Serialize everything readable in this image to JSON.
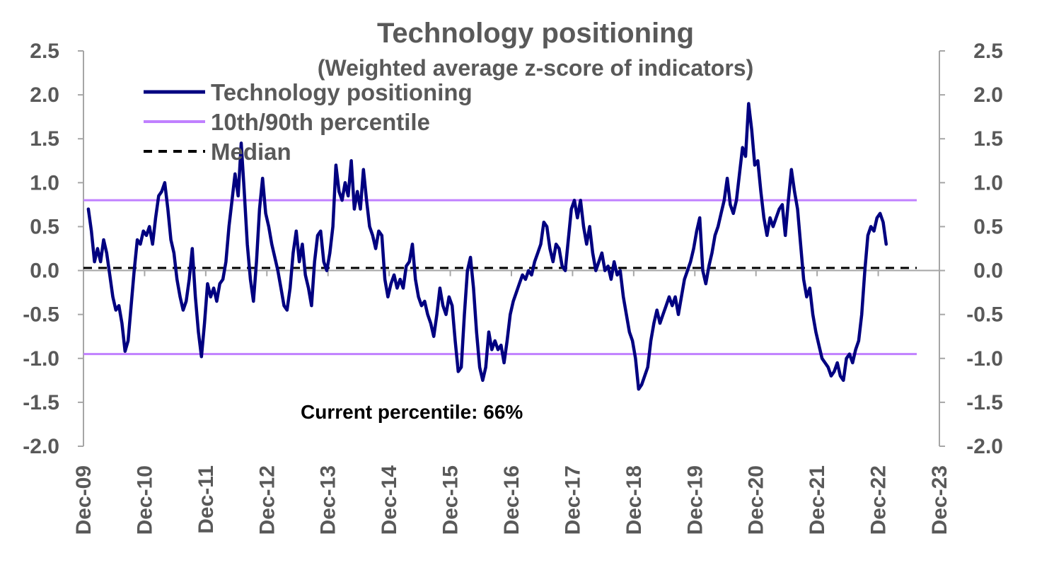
{
  "chart_data": {
    "type": "line",
    "title": "Technology positioning",
    "subtitle": "(Weighted average z-score of indicators)",
    "annotation": "Current percentile: 66%",
    "ylim": [
      -2.0,
      2.5
    ],
    "y_ticks": [
      "2.5",
      "2.0",
      "1.5",
      "1.0",
      "0.5",
      "0.0",
      "-0.5",
      "-1.0",
      "-1.5",
      "-2.0"
    ],
    "x_ticks": [
      "Dec-09",
      "Dec-10",
      "Dec-11",
      "Dec-12",
      "Dec-13",
      "Dec-14",
      "Dec-15",
      "Dec-16",
      "Dec-17",
      "Dec-18",
      "Dec-19",
      "Dec-20",
      "Dec-21",
      "Dec-22",
      "Dec-23"
    ],
    "x_range": [
      2009.92,
      2023.92
    ],
    "reference_lines": {
      "p90": 0.8,
      "p10": -0.95,
      "median": 0.03
    },
    "colors": {
      "series": "#000080",
      "percentile": "#c080ff",
      "median": "#000000",
      "axis": "#a6a6a6"
    },
    "legend": [
      {
        "label": "Technology positioning",
        "style": "solid-navy"
      },
      {
        "label": "10th/90th percentile",
        "style": "solid-lilac"
      },
      {
        "label": "Median",
        "style": "dashed-black"
      }
    ],
    "series": [
      {
        "name": "Technology positioning",
        "points": [
          [
            2010.0,
            0.7
          ],
          [
            2010.05,
            0.45
          ],
          [
            2010.1,
            0.1
          ],
          [
            2010.15,
            0.25
          ],
          [
            2010.2,
            0.1
          ],
          [
            2010.25,
            0.35
          ],
          [
            2010.3,
            0.2
          ],
          [
            2010.35,
            -0.05
          ],
          [
            2010.4,
            -0.3
          ],
          [
            2010.45,
            -0.45
          ],
          [
            2010.5,
            -0.4
          ],
          [
            2010.55,
            -0.6
          ],
          [
            2010.6,
            -0.92
          ],
          [
            2010.65,
            -0.8
          ],
          [
            2010.7,
            -0.4
          ],
          [
            2010.75,
            0.0
          ],
          [
            2010.8,
            0.35
          ],
          [
            2010.85,
            0.3
          ],
          [
            2010.9,
            0.45
          ],
          [
            2010.95,
            0.4
          ],
          [
            2011.0,
            0.5
          ],
          [
            2011.05,
            0.3
          ],
          [
            2011.1,
            0.6
          ],
          [
            2011.15,
            0.85
          ],
          [
            2011.2,
            0.9
          ],
          [
            2011.25,
            1.0
          ],
          [
            2011.3,
            0.7
          ],
          [
            2011.35,
            0.35
          ],
          [
            2011.4,
            0.2
          ],
          [
            2011.45,
            -0.1
          ],
          [
            2011.5,
            -0.3
          ],
          [
            2011.55,
            -0.45
          ],
          [
            2011.6,
            -0.35
          ],
          [
            2011.65,
            -0.1
          ],
          [
            2011.7,
            0.25
          ],
          [
            2011.75,
            -0.3
          ],
          [
            2011.8,
            -0.7
          ],
          [
            2011.85,
            -0.98
          ],
          [
            2011.9,
            -0.6
          ],
          [
            2011.95,
            -0.15
          ],
          [
            2012.0,
            -0.3
          ],
          [
            2012.05,
            -0.2
          ],
          [
            2012.1,
            -0.35
          ],
          [
            2012.15,
            -0.15
          ],
          [
            2012.2,
            -0.1
          ],
          [
            2012.25,
            0.1
          ],
          [
            2012.3,
            0.5
          ],
          [
            2012.35,
            0.8
          ],
          [
            2012.4,
            1.1
          ],
          [
            2012.45,
            0.85
          ],
          [
            2012.5,
            1.45
          ],
          [
            2012.55,
            0.9
          ],
          [
            2012.6,
            0.3
          ],
          [
            2012.65,
            -0.1
          ],
          [
            2012.7,
            -0.35
          ],
          [
            2012.75,
            0.1
          ],
          [
            2012.8,
            0.7
          ],
          [
            2012.85,
            1.05
          ],
          [
            2012.9,
            0.65
          ],
          [
            2012.95,
            0.5
          ],
          [
            2013.0,
            0.3
          ],
          [
            2013.05,
            0.15
          ],
          [
            2013.1,
            0.0
          ],
          [
            2013.15,
            -0.2
          ],
          [
            2013.2,
            -0.4
          ],
          [
            2013.25,
            -0.45
          ],
          [
            2013.3,
            -0.2
          ],
          [
            2013.35,
            0.2
          ],
          [
            2013.4,
            0.45
          ],
          [
            2013.45,
            0.1
          ],
          [
            2013.5,
            0.3
          ],
          [
            2013.55,
            -0.05
          ],
          [
            2013.6,
            -0.2
          ],
          [
            2013.65,
            -0.4
          ],
          [
            2013.7,
            0.1
          ],
          [
            2013.75,
            0.4
          ],
          [
            2013.8,
            0.45
          ],
          [
            2013.85,
            0.1
          ],
          [
            2013.9,
            0.0
          ],
          [
            2013.95,
            0.2
          ],
          [
            2014.0,
            0.5
          ],
          [
            2014.05,
            1.2
          ],
          [
            2014.1,
            0.9
          ],
          [
            2014.15,
            0.8
          ],
          [
            2014.2,
            1.0
          ],
          [
            2014.25,
            0.85
          ],
          [
            2014.3,
            1.25
          ],
          [
            2014.35,
            0.7
          ],
          [
            2014.4,
            0.9
          ],
          [
            2014.45,
            0.7
          ],
          [
            2014.5,
            1.15
          ],
          [
            2014.55,
            0.8
          ],
          [
            2014.6,
            0.5
          ],
          [
            2014.65,
            0.4
          ],
          [
            2014.7,
            0.25
          ],
          [
            2014.75,
            0.45
          ],
          [
            2014.8,
            0.4
          ],
          [
            2014.85,
            -0.1
          ],
          [
            2014.9,
            -0.3
          ],
          [
            2014.95,
            -0.15
          ],
          [
            2015.0,
            -0.05
          ],
          [
            2015.05,
            -0.2
          ],
          [
            2015.1,
            -0.1
          ],
          [
            2015.15,
            -0.2
          ],
          [
            2015.2,
            0.05
          ],
          [
            2015.25,
            0.1
          ],
          [
            2015.3,
            0.3
          ],
          [
            2015.35,
            -0.1
          ],
          [
            2015.4,
            -0.3
          ],
          [
            2015.45,
            -0.4
          ],
          [
            2015.5,
            -0.35
          ],
          [
            2015.55,
            -0.5
          ],
          [
            2015.6,
            -0.6
          ],
          [
            2015.65,
            -0.75
          ],
          [
            2015.7,
            -0.5
          ],
          [
            2015.75,
            -0.2
          ],
          [
            2015.8,
            -0.4
          ],
          [
            2015.85,
            -0.5
          ],
          [
            2015.9,
            -0.3
          ],
          [
            2015.95,
            -0.4
          ],
          [
            2016.0,
            -0.8
          ],
          [
            2016.05,
            -1.15
          ],
          [
            2016.1,
            -1.1
          ],
          [
            2016.15,
            -0.5
          ],
          [
            2016.2,
            0.0
          ],
          [
            2016.25,
            0.15
          ],
          [
            2016.3,
            -0.2
          ],
          [
            2016.35,
            -0.7
          ],
          [
            2016.4,
            -1.1
          ],
          [
            2016.45,
            -1.25
          ],
          [
            2016.5,
            -1.1
          ],
          [
            2016.55,
            -0.7
          ],
          [
            2016.6,
            -0.9
          ],
          [
            2016.65,
            -0.8
          ],
          [
            2016.7,
            -0.9
          ],
          [
            2016.75,
            -0.85
          ],
          [
            2016.8,
            -1.05
          ],
          [
            2016.85,
            -0.8
          ],
          [
            2016.9,
            -0.5
          ],
          [
            2016.95,
            -0.35
          ],
          [
            2017.0,
            -0.25
          ],
          [
            2017.05,
            -0.15
          ],
          [
            2017.1,
            -0.05
          ],
          [
            2017.15,
            -0.1
          ],
          [
            2017.2,
            0.0
          ],
          [
            2017.25,
            -0.05
          ],
          [
            2017.3,
            0.1
          ],
          [
            2017.35,
            0.2
          ],
          [
            2017.4,
            0.3
          ],
          [
            2017.45,
            0.55
          ],
          [
            2017.5,
            0.5
          ],
          [
            2017.55,
            0.25
          ],
          [
            2017.6,
            0.1
          ],
          [
            2017.65,
            0.3
          ],
          [
            2017.7,
            0.25
          ],
          [
            2017.75,
            0.05
          ],
          [
            2017.8,
            0.0
          ],
          [
            2017.85,
            0.35
          ],
          [
            2017.9,
            0.7
          ],
          [
            2017.95,
            0.8
          ],
          [
            2018.0,
            0.6
          ],
          [
            2018.05,
            0.8
          ],
          [
            2018.1,
            0.5
          ],
          [
            2018.15,
            0.3
          ],
          [
            2018.2,
            0.5
          ],
          [
            2018.25,
            0.2
          ],
          [
            2018.3,
            0.0
          ],
          [
            2018.35,
            0.1
          ],
          [
            2018.4,
            0.2
          ],
          [
            2018.45,
            0.0
          ],
          [
            2018.5,
            0.05
          ],
          [
            2018.55,
            -0.1
          ],
          [
            2018.6,
            0.1
          ],
          [
            2018.65,
            -0.05
          ],
          [
            2018.7,
            0.0
          ],
          [
            2018.75,
            -0.3
          ],
          [
            2018.8,
            -0.5
          ],
          [
            2018.85,
            -0.7
          ],
          [
            2018.9,
            -0.8
          ],
          [
            2018.95,
            -1.0
          ],
          [
            2019.0,
            -1.35
          ],
          [
            2019.05,
            -1.3
          ],
          [
            2019.1,
            -1.2
          ],
          [
            2019.15,
            -1.1
          ],
          [
            2019.2,
            -0.8
          ],
          [
            2019.25,
            -0.6
          ],
          [
            2019.3,
            -0.45
          ],
          [
            2019.35,
            -0.6
          ],
          [
            2019.4,
            -0.5
          ],
          [
            2019.45,
            -0.4
          ],
          [
            2019.5,
            -0.3
          ],
          [
            2019.55,
            -0.4
          ],
          [
            2019.6,
            -0.3
          ],
          [
            2019.65,
            -0.5
          ],
          [
            2019.7,
            -0.3
          ],
          [
            2019.75,
            -0.1
          ],
          [
            2019.8,
            0.0
          ],
          [
            2019.85,
            0.1
          ],
          [
            2019.9,
            0.25
          ],
          [
            2019.95,
            0.45
          ],
          [
            2020.0,
            0.6
          ],
          [
            2020.05,
            0.0
          ],
          [
            2020.1,
            -0.15
          ],
          [
            2020.15,
            0.05
          ],
          [
            2020.2,
            0.2
          ],
          [
            2020.25,
            0.4
          ],
          [
            2020.3,
            0.5
          ],
          [
            2020.35,
            0.65
          ],
          [
            2020.4,
            0.8
          ],
          [
            2020.45,
            1.05
          ],
          [
            2020.5,
            0.75
          ],
          [
            2020.55,
            0.65
          ],
          [
            2020.6,
            0.8
          ],
          [
            2020.65,
            1.1
          ],
          [
            2020.7,
            1.4
          ],
          [
            2020.75,
            1.3
          ],
          [
            2020.8,
            1.9
          ],
          [
            2020.85,
            1.6
          ],
          [
            2020.9,
            1.2
          ],
          [
            2020.95,
            1.25
          ],
          [
            2021.0,
            0.9
          ],
          [
            2021.05,
            0.6
          ],
          [
            2021.1,
            0.4
          ],
          [
            2021.15,
            0.6
          ],
          [
            2021.2,
            0.5
          ],
          [
            2021.25,
            0.6
          ],
          [
            2021.3,
            0.7
          ],
          [
            2021.35,
            0.75
          ],
          [
            2021.4,
            0.4
          ],
          [
            2021.45,
            0.8
          ],
          [
            2021.5,
            1.15
          ],
          [
            2021.55,
            0.9
          ],
          [
            2021.6,
            0.7
          ],
          [
            2021.65,
            0.3
          ],
          [
            2021.7,
            -0.1
          ],
          [
            2021.75,
            -0.3
          ],
          [
            2021.8,
            -0.2
          ],
          [
            2021.85,
            -0.5
          ],
          [
            2021.9,
            -0.7
          ],
          [
            2021.95,
            -0.85
          ],
          [
            2022.0,
            -1.0
          ],
          [
            2022.05,
            -1.05
          ],
          [
            2022.1,
            -1.1
          ],
          [
            2022.15,
            -1.2
          ],
          [
            2022.2,
            -1.15
          ],
          [
            2022.25,
            -1.05
          ],
          [
            2022.3,
            -1.2
          ],
          [
            2022.35,
            -1.25
          ],
          [
            2022.4,
            -1.0
          ],
          [
            2022.45,
            -0.95
          ],
          [
            2022.5,
            -1.05
          ],
          [
            2022.55,
            -0.9
          ],
          [
            2022.6,
            -0.8
          ],
          [
            2022.65,
            -0.5
          ],
          [
            2022.7,
            0.0
          ],
          [
            2022.75,
            0.4
          ],
          [
            2022.8,
            0.5
          ],
          [
            2022.85,
            0.45
          ],
          [
            2022.9,
            0.6
          ],
          [
            2022.95,
            0.65
          ],
          [
            2023.0,
            0.55
          ],
          [
            2023.05,
            0.3
          ]
        ]
      }
    ]
  }
}
